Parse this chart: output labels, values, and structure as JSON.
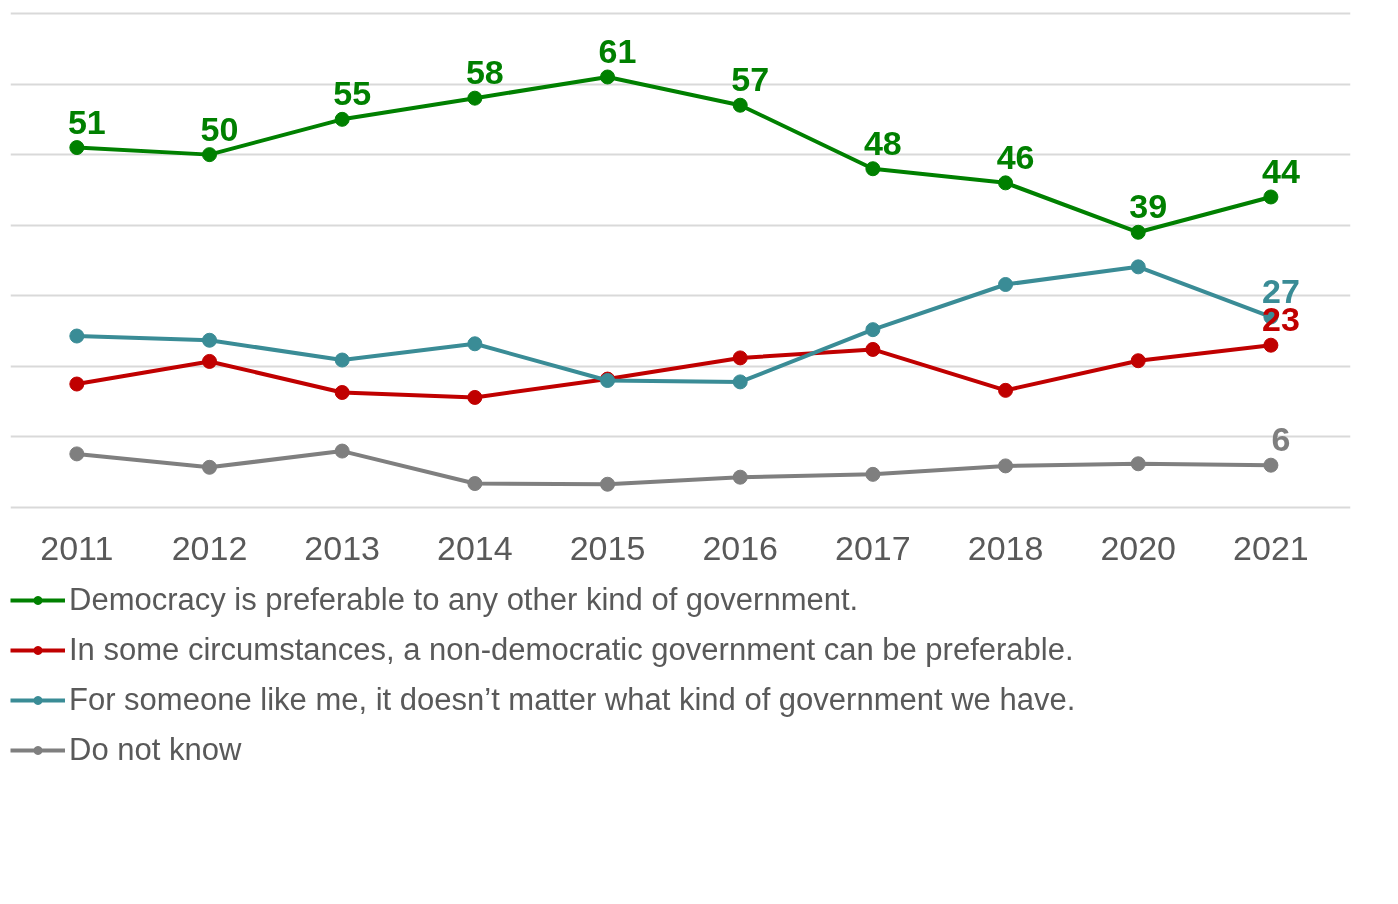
{
  "chart_data": {
    "type": "line",
    "categories": [
      "2011",
      "2012",
      "2013",
      "2014",
      "2015",
      "2016",
      "2017",
      "2018",
      "2020",
      "2021"
    ],
    "ylim": [
      0,
      70
    ],
    "yticks": [
      {
        "value": 0,
        "label": null
      },
      {
        "value": 10,
        "label": null
      },
      {
        "value": 20,
        "label": null
      },
      {
        "value": 30,
        "label": null
      },
      {
        "value": 40,
        "label": null
      },
      {
        "value": 50,
        "label": null
      },
      {
        "value": 60,
        "label": null
      },
      {
        "value": 70,
        "label": null
      }
    ],
    "grid": "y",
    "legend": "bottom",
    "marker": "circle",
    "line_style": "solid",
    "tick_labels": "x",
    "series": [
      {
        "name": "Democracy is preferable to any other kind of government.",
        "color": "#008000",
        "values": [
          51,
          50,
          55,
          58,
          61,
          57,
          48,
          46,
          39,
          44
        ],
        "value_labels": [
          "51",
          "50",
          "55",
          "58",
          "61",
          "57",
          "48",
          "46",
          "39",
          "44"
        ]
      },
      {
        "name": "In some circumstances, a non-democratic government can be preferable.",
        "color": "#c00000",
        "values": [
          17.5,
          20.7,
          16.3,
          15.6,
          18.2,
          21.2,
          22.4,
          16.6,
          20.8,
          23
        ],
        "value_labels": [
          null,
          null,
          null,
          null,
          null,
          null,
          null,
          null,
          null,
          "23"
        ]
      },
      {
        "name": "For someone like me, it doesn’t matter what kind of government we have.",
        "color": "#3a8c96",
        "values": [
          24.3,
          23.7,
          20.9,
          23.2,
          18.0,
          17.8,
          25.2,
          31.6,
          34.1,
          27
        ],
        "value_labels": [
          null,
          null,
          null,
          null,
          null,
          null,
          null,
          null,
          null,
          "27"
        ]
      },
      {
        "name": "Do not know",
        "color": "#7f7f7f",
        "values": [
          7.6,
          5.7,
          8.0,
          3.4,
          3.3,
          4.3,
          4.7,
          5.9,
          6.2,
          6
        ],
        "value_labels": [
          null,
          null,
          null,
          null,
          null,
          null,
          null,
          null,
          null,
          "6"
        ]
      }
    ]
  }
}
